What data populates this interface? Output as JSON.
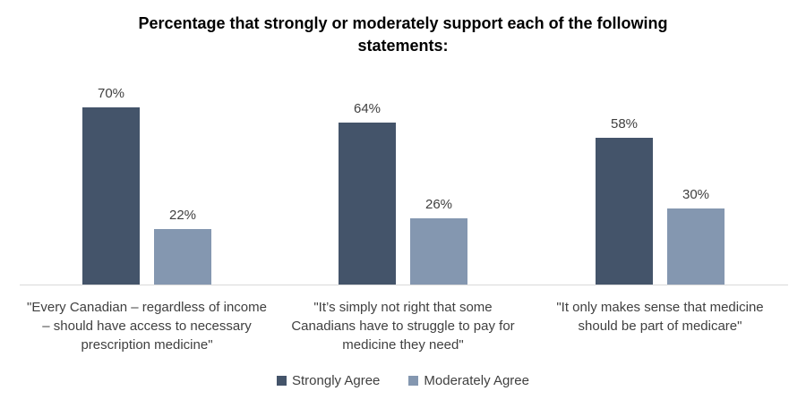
{
  "chart_data": {
    "type": "bar",
    "title": "Percentage that strongly or moderately support each of the following statements:",
    "categories": [
      "\"Every Canadian – regardless of income – should have access to necessary prescription medicine\"",
      "\"It’s simply not right that some Canadians have to struggle to pay for medicine they need\"",
      "\"It only makes sense that medicine should be part of medicare\""
    ],
    "series": [
      {
        "name": "Strongly Agree",
        "color": "#44546A",
        "values": [
          70,
          64,
          58
        ]
      },
      {
        "name": "Moderately Agree",
        "color": "#8497B0",
        "values": [
          22,
          26,
          30
        ]
      }
    ],
    "xlabel": "",
    "ylabel": "",
    "ylim": [
      0,
      80
    ],
    "grid": false,
    "legend_position": "bottom",
    "value_labels_shown": true
  },
  "ui": {
    "title_display": "Percentage that strongly or moderately support each of the following\nstatements:",
    "value_labels": [
      [
        "70%",
        "64%",
        "58%"
      ],
      [
        "22%",
        "26%",
        "30%"
      ]
    ],
    "category_labels_display": [
      "\"Every Canadian – regardless of income\n– should have access to necessary\nprescription medicine\"",
      "\"It’s simply not right that some\nCanadians have to struggle to pay for\nmedicine they need\"",
      "\"It only makes sense that medicine\nshould be part of medicare\""
    ],
    "legend": [
      {
        "label": "Strongly Agree",
        "color": "#44546A"
      },
      {
        "label": "Moderately Agree",
        "color": "#8497B0"
      }
    ],
    "colors": {
      "bar_strongly_agree": "#44546A",
      "bar_moderately_agree": "#8497B0",
      "axis_line": "#D9D9D9",
      "label_text": "#404040",
      "title_text": "#000000",
      "background": "#FFFFFF"
    }
  }
}
